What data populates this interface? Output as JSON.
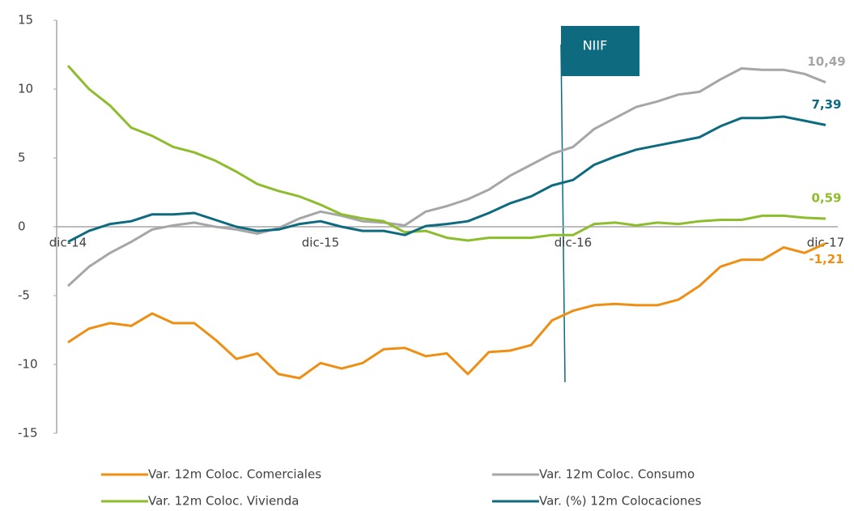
{
  "chart_data": {
    "type": "line",
    "categories": [
      "dic-14",
      null,
      null,
      null,
      null,
      null,
      null,
      null,
      null,
      null,
      null,
      null,
      "dic-15",
      null,
      null,
      null,
      null,
      null,
      null,
      null,
      null,
      null,
      null,
      null,
      "dic-16",
      null,
      null,
      null,
      null,
      null,
      null,
      null,
      null,
      null,
      null,
      null,
      "dic-17"
    ],
    "series": [
      {
        "name": "Var. 12m Coloc. Comerciales",
        "color": "#ee8f14",
        "values": [
          -8.4,
          -7.4,
          -7.0,
          -7.2,
          -6.3,
          -7.0,
          -7.0,
          -8.2,
          -9.6,
          -9.2,
          -10.7,
          -11.0,
          -9.9,
          -10.3,
          -9.9,
          -8.9,
          -8.8,
          -9.4,
          -9.2,
          -10.7,
          -9.1,
          -9.0,
          -8.6,
          -6.8,
          -6.1,
          -5.7,
          -5.6,
          -5.7,
          -5.7,
          -5.3,
          -4.3,
          -2.9,
          -2.4,
          -2.4,
          -1.5,
          -1.9,
          -1.21
        ],
        "value_labels": [
          null,
          null,
          null,
          null,
          null,
          null,
          null,
          null,
          null,
          null,
          null,
          null,
          null,
          null,
          null,
          null,
          null,
          null,
          null,
          null,
          null,
          null,
          null,
          null,
          null,
          null,
          null,
          null,
          null,
          null,
          null,
          null,
          null,
          null,
          null,
          null,
          "-1,21"
        ]
      },
      {
        "name": "Var. 12m Coloc. Consumo",
        "color": "#a6a6a6",
        "values": [
          -4.3,
          -2.9,
          -1.9,
          -1.1,
          -0.2,
          0.1,
          0.3,
          0.0,
          -0.2,
          -0.5,
          -0.1,
          0.6,
          1.1,
          0.8,
          0.4,
          0.3,
          0.1,
          1.1,
          1.5,
          2.0,
          2.7,
          3.7,
          4.5,
          5.3,
          5.8,
          7.1,
          7.9,
          8.7,
          9.1,
          9.6,
          9.8,
          10.7,
          11.5,
          11.4,
          11.4,
          11.1,
          10.49
        ],
        "value_labels": [
          null,
          null,
          null,
          null,
          null,
          null,
          null,
          null,
          null,
          null,
          null,
          null,
          null,
          null,
          null,
          null,
          null,
          null,
          null,
          null,
          null,
          null,
          null,
          null,
          null,
          null,
          null,
          null,
          null,
          null,
          null,
          null,
          null,
          null,
          null,
          null,
          "10,49"
        ]
      },
      {
        "name": "Var. 12m Coloc. Vivienda",
        "color": "#8dbd2c",
        "values": [
          11.7,
          10.0,
          8.8,
          7.2,
          6.6,
          5.8,
          5.4,
          4.8,
          4.0,
          3.1,
          2.6,
          2.2,
          1.6,
          0.9,
          0.6,
          0.4,
          -0.4,
          -0.3,
          -0.8,
          -1.0,
          -0.8,
          -0.8,
          -0.8,
          -0.6,
          -0.6,
          0.2,
          0.3,
          0.1,
          0.3,
          0.2,
          0.4,
          0.5,
          0.5,
          0.8,
          0.8,
          0.65,
          0.59
        ],
        "value_labels": [
          null,
          null,
          null,
          null,
          null,
          null,
          null,
          null,
          null,
          null,
          null,
          null,
          null,
          null,
          null,
          null,
          null,
          null,
          null,
          null,
          null,
          null,
          null,
          null,
          null,
          null,
          null,
          null,
          null,
          null,
          null,
          null,
          null,
          null,
          null,
          null,
          "0,59"
        ]
      },
      {
        "name": "Var. (%) 12m Colocaciones",
        "color": "#0e6b7f",
        "values": [
          -1.1,
          -0.3,
          0.2,
          0.4,
          0.9,
          0.9,
          1.0,
          0.5,
          0.0,
          -0.3,
          -0.2,
          0.2,
          0.4,
          0.0,
          -0.3,
          -0.3,
          -0.6,
          0.05,
          0.2,
          0.4,
          1.0,
          1.7,
          2.2,
          3.0,
          3.4,
          4.5,
          5.1,
          5.6,
          5.9,
          6.2,
          6.5,
          7.3,
          7.9,
          7.9,
          8.0,
          7.7,
          7.39
        ],
        "value_labels": [
          null,
          null,
          null,
          null,
          null,
          null,
          null,
          null,
          null,
          null,
          null,
          null,
          null,
          null,
          null,
          null,
          null,
          null,
          null,
          null,
          null,
          null,
          null,
          null,
          null,
          null,
          null,
          null,
          null,
          null,
          null,
          null,
          null,
          null,
          null,
          null,
          "7,39"
        ]
      }
    ],
    "annotation": "NIIF",
    "ylim": [
      -15,
      15
    ],
    "yticks": [
      -15,
      -10,
      -5,
      0,
      5,
      10,
      15
    ],
    "grid": false
  }
}
